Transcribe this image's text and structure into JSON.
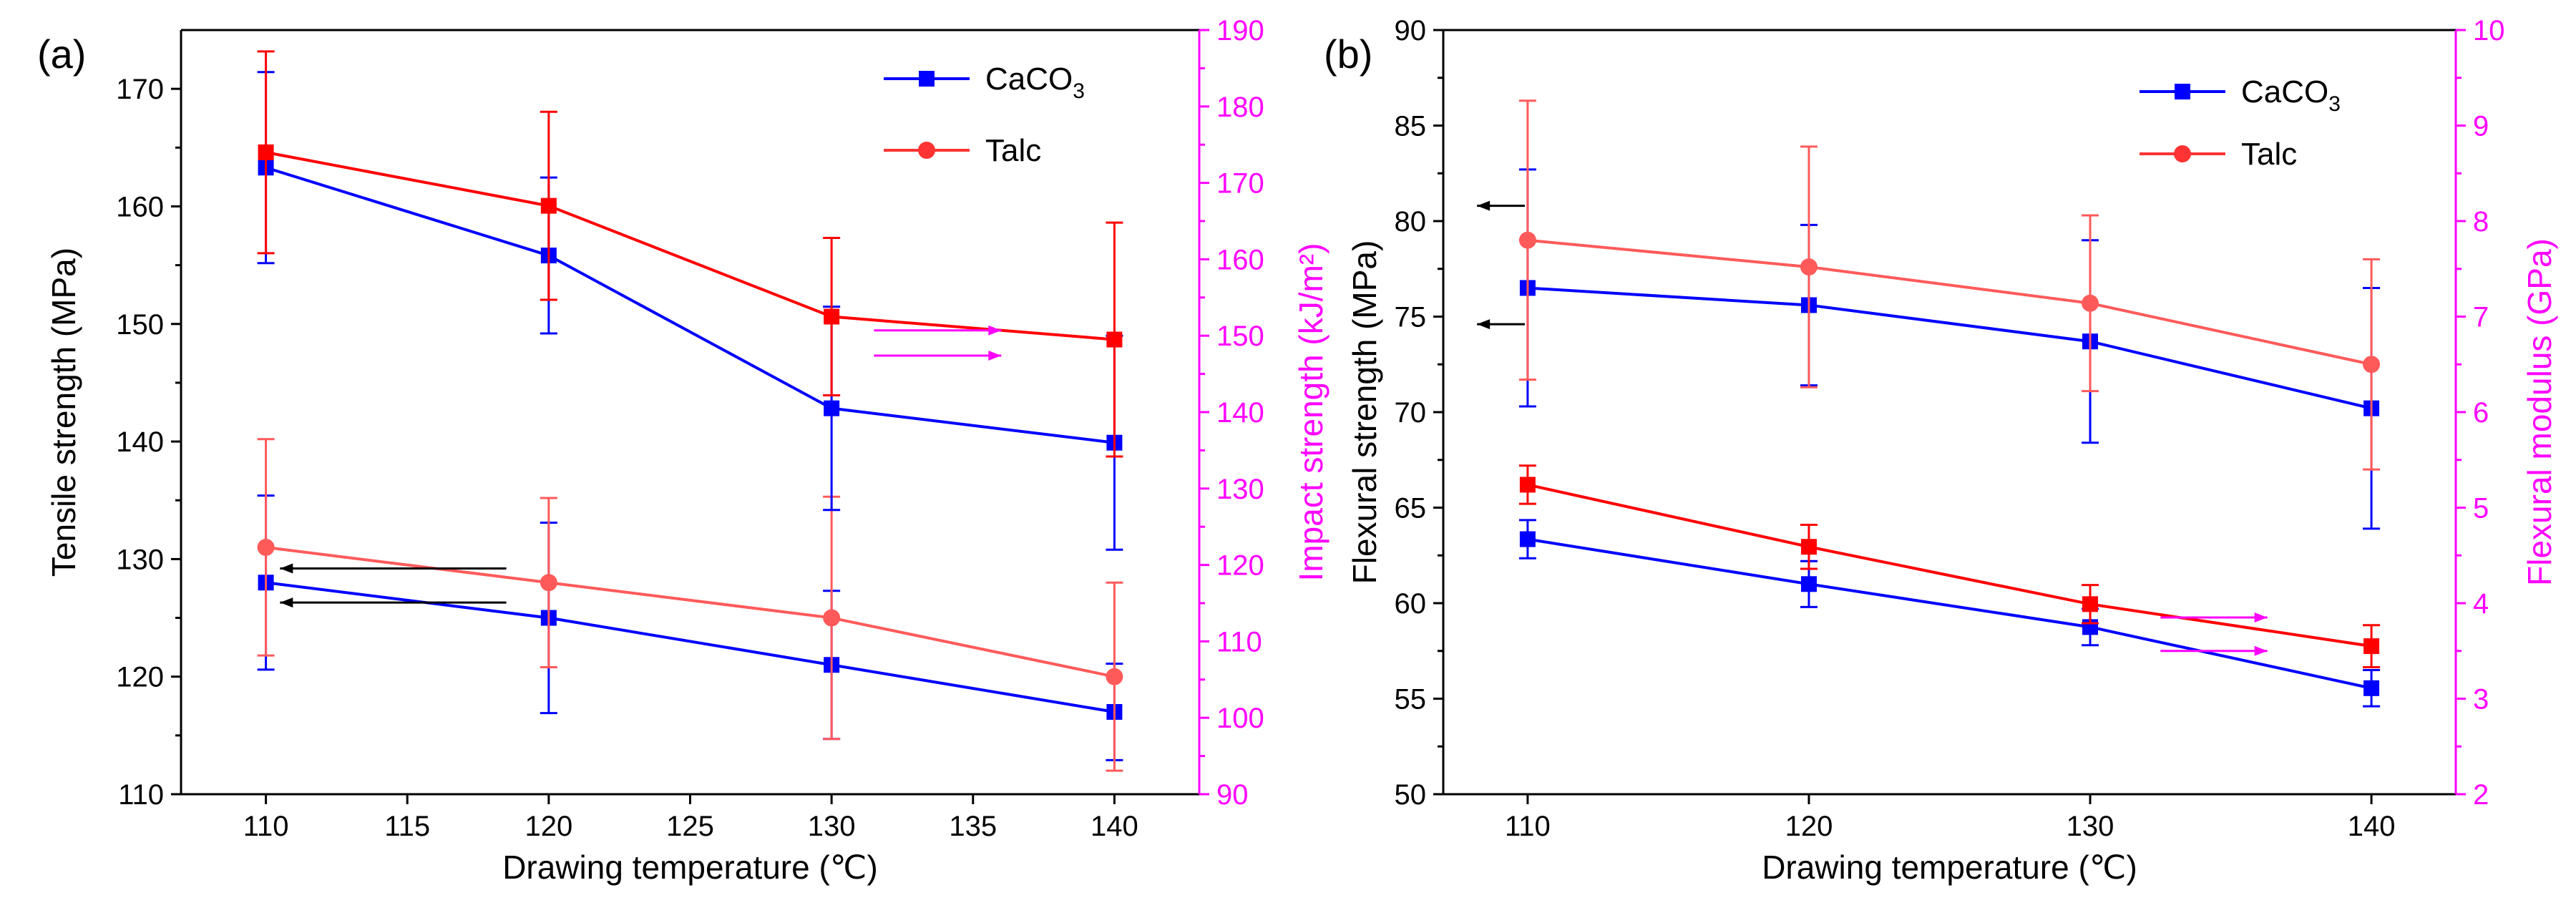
{
  "chart_data": [
    {
      "panel_label": "(a)",
      "type": "line",
      "xlabel": "Drawing temperature (℃)",
      "ylabel_left": "Tensile strength (MPa)",
      "ylabel_right": "Impact strength (kJ/m²)",
      "xlim": [
        107,
        143
      ],
      "ylim_left": [
        110,
        175
      ],
      "ylim_right": [
        90,
        190
      ],
      "x_ticks": [
        110,
        115,
        120,
        125,
        130,
        135,
        140
      ],
      "y_ticks_left": [
        110,
        120,
        130,
        140,
        150,
        160,
        170
      ],
      "y_ticks_right": [
        90,
        100,
        110,
        120,
        130,
        140,
        150,
        160,
        170,
        180,
        190
      ],
      "legend": [
        {
          "label": "CaCO",
          "sub": "3",
          "color": "#0000ff",
          "marker": "square"
        },
        {
          "label": "Talc",
          "color": "#ff3333",
          "marker": "circle"
        }
      ],
      "x": [
        110,
        120,
        130,
        140
      ],
      "series": [
        {
          "name": "CaCO3 tensile",
          "filler": "CaCO3",
          "axis": "left",
          "marker": "square",
          "color": "#0000ff",
          "values": [
            128,
            125,
            121,
            117
          ],
          "errors": [
            7.4,
            8.1,
            6.3,
            4.1
          ]
        },
        {
          "name": "Talc tensile",
          "filler": "Talc",
          "axis": "left",
          "marker": "circle",
          "color": "#ff5a5a",
          "values": [
            131,
            128,
            125,
            120
          ],
          "errors": [
            9.2,
            7.2,
            10.3,
            8.0
          ]
        },
        {
          "name": "CaCO3 impact",
          "filler": "CaCO3",
          "axis": "right",
          "marker": "square",
          "color": "#0000ff",
          "values": [
            172,
            160.5,
            140.5,
            136
          ],
          "errors": [
            12.5,
            10.2,
            13.3,
            14.0
          ]
        },
        {
          "name": "Talc impact",
          "filler": "Talc",
          "axis": "right",
          "marker": "square",
          "color": "#ff0000",
          "values": [
            174,
            167,
            152.5,
            149.5
          ],
          "errors": [
            13.2,
            12.3,
            10.3,
            15.3
          ]
        }
      ],
      "annotations": [
        {
          "type": "arrow",
          "direction": "left",
          "color": "#000000",
          "points_to": "left axis",
          "x_from": 118.5,
          "x_to": 110.5,
          "y": 129.2
        },
        {
          "type": "arrow",
          "direction": "left",
          "color": "#000000",
          "points_to": "left axis",
          "x_from": 118.5,
          "x_to": 110.5,
          "y": 126.3
        },
        {
          "type": "arrow",
          "direction": "right",
          "color": "#ff00ff",
          "points_to": "right axis",
          "x_from": 131.5,
          "x_to": 136,
          "y": 150.7
        },
        {
          "type": "arrow",
          "direction": "right",
          "color": "#ff00ff",
          "points_to": "right axis",
          "x_from": 131.5,
          "x_to": 136,
          "y": 147.4
        }
      ]
    },
    {
      "panel_label": "(b)",
      "type": "line",
      "xlabel": "Drawing temperature (℃)",
      "ylabel_left": "Flexural strength (MPa)",
      "ylabel_right": "Flexural modulus (GPa)",
      "xlim": [
        107,
        143
      ],
      "ylim_left": [
        50,
        90
      ],
      "ylim_right": [
        2,
        10
      ],
      "x_ticks": [
        110,
        120,
        130,
        140
      ],
      "y_ticks_left": [
        50,
        55,
        60,
        65,
        70,
        75,
        80,
        85,
        90
      ],
      "y_ticks_right": [
        2,
        3,
        4,
        5,
        6,
        7,
        8,
        9,
        10
      ],
      "legend": [
        {
          "label": "CaCO",
          "sub": "3",
          "color": "#0000ff",
          "marker": "square"
        },
        {
          "label": "Talc",
          "color": "#ff3333",
          "marker": "circle"
        }
      ],
      "x": [
        110,
        120,
        130,
        140
      ],
      "series": [
        {
          "name": "CaCO3 flexural strength",
          "filler": "CaCO3",
          "axis": "left",
          "marker": "square",
          "color": "#0000ff",
          "values": [
            76.5,
            75.6,
            73.7,
            70.2
          ],
          "errors": [
            6.2,
            4.2,
            5.3,
            6.3
          ]
        },
        {
          "name": "Talc flexural strength",
          "filler": "Talc",
          "axis": "left",
          "marker": "circle",
          "color": "#ff5a5a",
          "values": [
            79,
            77.6,
            75.7,
            72.5
          ],
          "errors": [
            7.3,
            6.3,
            4.6,
            5.5
          ]
        },
        {
          "name": "CaCO3 flexural modulus",
          "filler": "CaCO3",
          "axis": "right",
          "marker": "square",
          "color": "#0000ff",
          "values": [
            4.67,
            4.2,
            3.75,
            3.11
          ],
          "errors": [
            0.2,
            0.24,
            0.19,
            0.19
          ]
        },
        {
          "name": "Talc flexural modulus",
          "filler": "Talc",
          "axis": "right",
          "marker": "square",
          "color": "#ff0000",
          "values": [
            5.24,
            4.59,
            3.99,
            3.55
          ],
          "errors": [
            0.2,
            0.23,
            0.2,
            0.22
          ]
        }
      ],
      "annotations": [
        {
          "type": "arrow",
          "direction": "left",
          "color": "#000000",
          "points_to": "left axis",
          "x_from": 109.9,
          "x_to": 108.2,
          "y": 80.8
        },
        {
          "type": "arrow",
          "direction": "left",
          "color": "#000000",
          "points_to": "left axis",
          "x_from": 109.9,
          "x_to": 108.2,
          "y": 74.6
        },
        {
          "type": "arrow",
          "direction": "right",
          "color": "#ff00ff",
          "points_to": "right axis",
          "x_from": 132.5,
          "x_to": 136.3,
          "y": 3.85
        },
        {
          "type": "arrow",
          "direction": "right",
          "color": "#ff00ff",
          "points_to": "right axis",
          "x_from": 132.5,
          "x_to": 136.3,
          "y": 3.5
        }
      ]
    }
  ]
}
